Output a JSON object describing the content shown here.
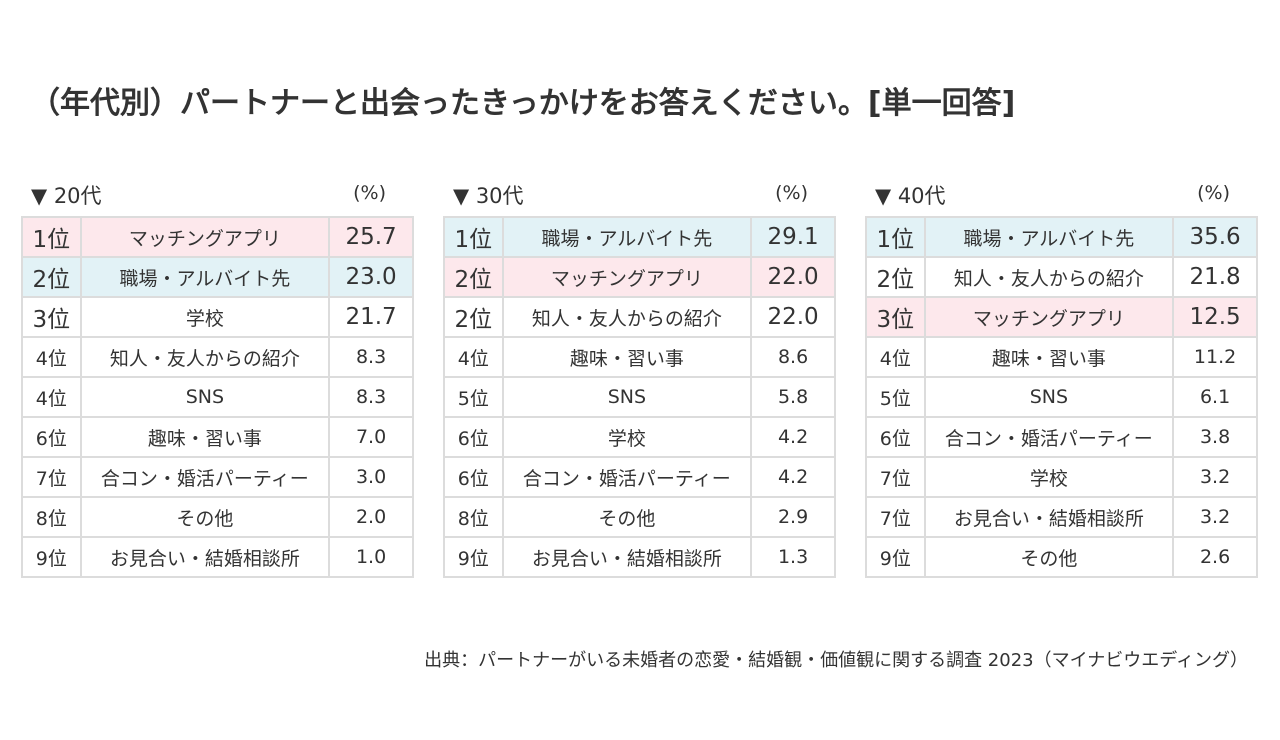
{
  "title": "（年代別）パートナーと出会ったきっかけをお答えください。[単一回答]",
  "source": "出典：パートナーがいる未婚者の恋愛・結婚観・価値観に関する調査 2023（マイナビウエディング）",
  "colors": {
    "highlight_matching_app": "#fde8ec",
    "highlight_workplace": "#e2f2f6",
    "border": "#dcdcdc",
    "text": "#333333"
  },
  "chart_data": [
    {
      "type": "table",
      "title": "▼ 20代",
      "unit": "(%)",
      "rows": [
        {
          "rank": "1位",
          "item": "マッチングアプリ",
          "value": "25.7",
          "highlight": "pink",
          "top": true
        },
        {
          "rank": "2位",
          "item": "職場・アルバイト先",
          "value": "23.0",
          "highlight": "blue",
          "top": true
        },
        {
          "rank": "3位",
          "item": "学校",
          "value": "21.7",
          "highlight": "",
          "top": true
        },
        {
          "rank": "4位",
          "item": "知人・友人からの紹介",
          "value": "8.3",
          "highlight": "",
          "top": false
        },
        {
          "rank": "4位",
          "item": "SNS",
          "value": "8.3",
          "highlight": "",
          "top": false
        },
        {
          "rank": "6位",
          "item": "趣味・習い事",
          "value": "7.0",
          "highlight": "",
          "top": false
        },
        {
          "rank": "7位",
          "item": "合コン・婚活パーティー",
          "value": "3.0",
          "highlight": "",
          "top": false
        },
        {
          "rank": "8位",
          "item": "その他",
          "value": "2.0",
          "highlight": "",
          "top": false
        },
        {
          "rank": "9位",
          "item": "お見合い・結婚相談所",
          "value": "1.0",
          "highlight": "",
          "top": false
        }
      ]
    },
    {
      "type": "table",
      "title": "▼ 30代",
      "unit": "(%)",
      "rows": [
        {
          "rank": "1位",
          "item": "職場・アルバイト先",
          "value": "29.1",
          "highlight": "blue",
          "top": true
        },
        {
          "rank": "2位",
          "item": "マッチングアプリ",
          "value": "22.0",
          "highlight": "pink",
          "top": true
        },
        {
          "rank": "2位",
          "item": "知人・友人からの紹介",
          "value": "22.0",
          "highlight": "",
          "top": true
        },
        {
          "rank": "4位",
          "item": "趣味・習い事",
          "value": "8.6",
          "highlight": "",
          "top": false
        },
        {
          "rank": "5位",
          "item": "SNS",
          "value": "5.8",
          "highlight": "",
          "top": false
        },
        {
          "rank": "6位",
          "item": "学校",
          "value": "4.2",
          "highlight": "",
          "top": false
        },
        {
          "rank": "6位",
          "item": "合コン・婚活パーティー",
          "value": "4.2",
          "highlight": "",
          "top": false
        },
        {
          "rank": "8位",
          "item": "その他",
          "value": "2.9",
          "highlight": "",
          "top": false
        },
        {
          "rank": "9位",
          "item": "お見合い・結婚相談所",
          "value": "1.3",
          "highlight": "",
          "top": false
        }
      ]
    },
    {
      "type": "table",
      "title": "▼ 40代",
      "unit": "(%)",
      "rows": [
        {
          "rank": "1位",
          "item": "職場・アルバイト先",
          "value": "35.6",
          "highlight": "blue",
          "top": true
        },
        {
          "rank": "2位",
          "item": "知人・友人からの紹介",
          "value": "21.8",
          "highlight": "",
          "top": true
        },
        {
          "rank": "3位",
          "item": "マッチングアプリ",
          "value": "12.5",
          "highlight": "pink",
          "top": true
        },
        {
          "rank": "4位",
          "item": "趣味・習い事",
          "value": "11.2",
          "highlight": "",
          "top": false
        },
        {
          "rank": "5位",
          "item": "SNS",
          "value": "6.1",
          "highlight": "",
          "top": false
        },
        {
          "rank": "6位",
          "item": "合コン・婚活パーティー",
          "value": "3.8",
          "highlight": "",
          "top": false
        },
        {
          "rank": "7位",
          "item": "学校",
          "value": "3.2",
          "highlight": "",
          "top": false
        },
        {
          "rank": "7位",
          "item": "お見合い・結婚相談所",
          "value": "3.2",
          "highlight": "",
          "top": false
        },
        {
          "rank": "9位",
          "item": "その他",
          "value": "2.6",
          "highlight": "",
          "top": false
        }
      ]
    }
  ]
}
